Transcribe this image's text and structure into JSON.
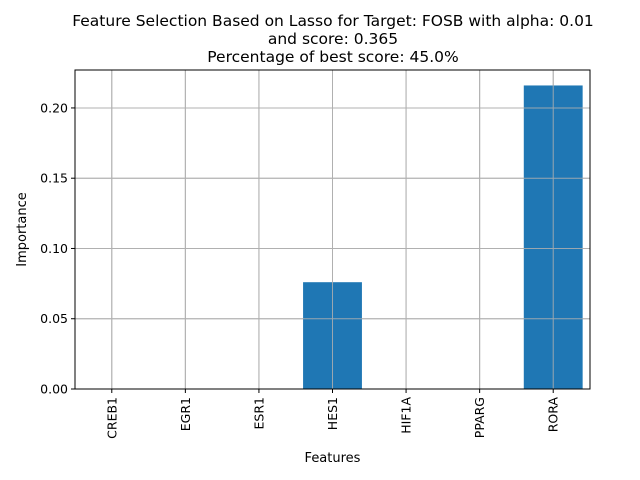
{
  "chart_data": {
    "type": "bar",
    "title_lines": [
      "Feature Selection Based on Lasso for Target: FOSB with alpha: 0.01",
      "and score: 0.365",
      "Percentage of best score: 45.0%"
    ],
    "xlabel": "Features",
    "ylabel": "Importance",
    "categories": [
      "CREB1",
      "EGR1",
      "ESR1",
      "HES1",
      "HIF1A",
      "PPARG",
      "RORA"
    ],
    "values": [
      0.0,
      0.0,
      0.0,
      0.076,
      0.0,
      0.0,
      0.216
    ],
    "ylim": [
      0,
      0.227
    ],
    "yticks": [
      0.0,
      0.05,
      0.1,
      0.15,
      0.2
    ],
    "ytick_labels": [
      "0.00",
      "0.05",
      "0.10",
      "0.15",
      "0.20"
    ],
    "grid": true,
    "bar_color": "#1f77b4"
  }
}
